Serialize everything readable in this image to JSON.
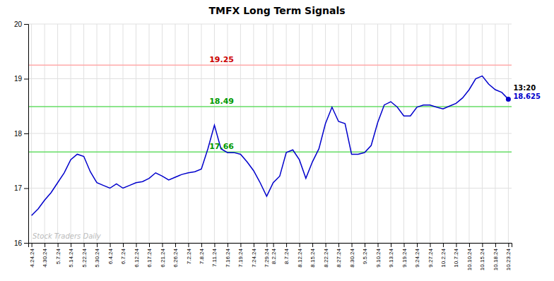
{
  "chart_data": {
    "type": "line",
    "title": "TMFX Long Term Signals",
    "categories": [
      "4.24.24",
      null,
      "4.30.24",
      null,
      "5.7.24",
      null,
      "5.14.24",
      null,
      "5.22.24",
      null,
      "5.30.24",
      null,
      "6.4.24",
      null,
      "6.7.24",
      null,
      "6.12.24",
      null,
      "6.17.24",
      null,
      "6.21.24",
      null,
      "6.26.24",
      null,
      "7.2.24",
      null,
      "7.8.24",
      null,
      "7.11.24",
      null,
      "7.16.24",
      null,
      "7.19.24",
      null,
      "7.24.24",
      null,
      "7.29.24",
      "8.2.24",
      null,
      "8.7.24",
      null,
      "8.12.24",
      null,
      "8.15.24",
      null,
      "8.22.24",
      null,
      "8.27.24",
      null,
      "8.30.24",
      null,
      "9.5.24",
      null,
      "9.10.24",
      null,
      "9.13.24",
      null,
      "9.19.24",
      null,
      "9.24.24",
      null,
      "9.27.24",
      null,
      "10.2.24",
      null,
      "10.7.24",
      null,
      "10.10.24",
      null,
      "10.15.24",
      null,
      "10.18.24",
      null,
      "10.23.24"
    ],
    "values": [
      16.5,
      16.62,
      16.78,
      16.92,
      17.1,
      17.28,
      17.52,
      17.62,
      17.58,
      17.3,
      17.1,
      17.05,
      17.0,
      17.08,
      17.0,
      17.05,
      17.1,
      17.12,
      17.18,
      17.28,
      17.22,
      17.15,
      17.2,
      17.25,
      17.28,
      17.3,
      17.35,
      17.72,
      18.15,
      17.72,
      17.65,
      17.65,
      17.62,
      17.48,
      17.32,
      17.1,
      16.85,
      17.1,
      17.22,
      17.65,
      17.7,
      17.52,
      17.18,
      17.48,
      17.72,
      18.18,
      18.48,
      18.22,
      18.18,
      17.62,
      17.62,
      17.65,
      17.78,
      18.2,
      18.52,
      18.58,
      18.48,
      18.32,
      18.32,
      18.48,
      18.52,
      18.52,
      18.48,
      18.45,
      18.5,
      18.55,
      18.65,
      18.8,
      19.0,
      19.05,
      18.9,
      18.8,
      18.75,
      18.625
    ],
    "color": "#0000cc",
    "ylim": [
      16,
      20
    ],
    "yticks": [
      16,
      17,
      18,
      19,
      20
    ],
    "grid": true,
    "reference_lines": [
      {
        "value": 19.25,
        "label": "19.25",
        "color": "#ffaaaa",
        "label_color": "#cc0000"
      },
      {
        "value": 18.49,
        "label": "18.49",
        "color": "#66dd66",
        "label_color": "#009900"
      },
      {
        "value": 17.66,
        "label": "17.66",
        "color": "#66dd66",
        "label_color": "#009900"
      }
    ],
    "last_point": {
      "time_label": "13:20",
      "price_label": "18.625",
      "color": "#0000cc"
    },
    "watermark": "Stock Traders Daily"
  }
}
